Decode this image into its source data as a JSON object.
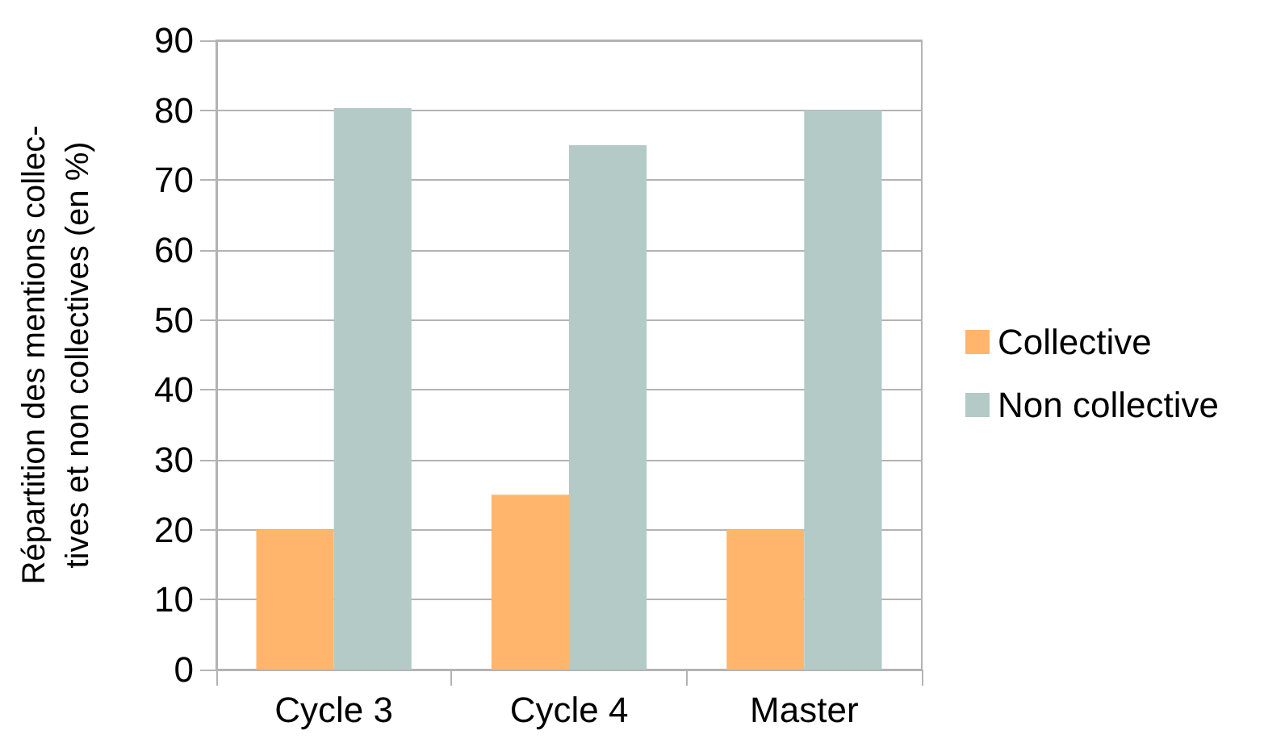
{
  "chart_data": {
    "type": "bar",
    "ylabel": "Répartition des mentions collec-\ntives et non collectives (en %)",
    "categories": [
      "Cycle 3",
      "Cycle 4",
      "Master"
    ],
    "series": [
      {
        "name": "Collective",
        "color": "#ffb66c",
        "values": [
          20,
          25,
          20
        ]
      },
      {
        "name": "Non collective",
        "color": "#b3cac7",
        "values": [
          80.3,
          75,
          80
        ]
      }
    ],
    "ylim": [
      0,
      90
    ],
    "yticks": [
      0,
      10,
      20,
      30,
      40,
      50,
      60,
      70,
      80,
      90
    ],
    "grid": "y",
    "legend": "right"
  }
}
